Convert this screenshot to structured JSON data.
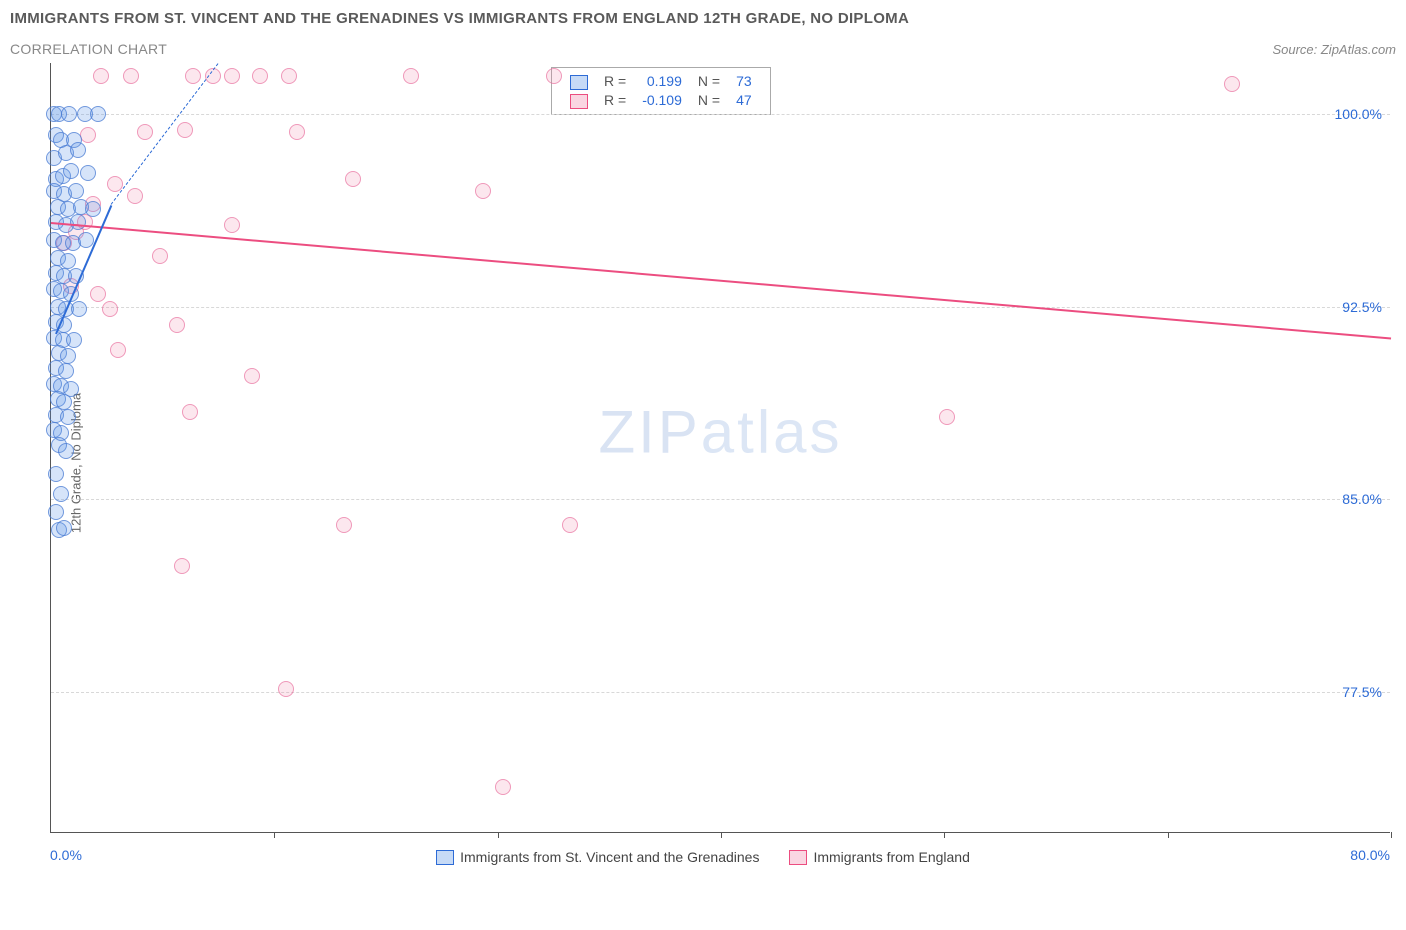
{
  "title": "IMMIGRANTS FROM ST. VINCENT AND THE GRENADINES VS IMMIGRANTS FROM ENGLAND 12TH GRADE, NO DIPLOMA",
  "subtitle": "CORRELATION CHART",
  "source": "Source: ZipAtlas.com",
  "watermark_a": "ZIP",
  "watermark_b": "atlas",
  "chart": {
    "type": "scatter",
    "xlim": [
      0,
      80
    ],
    "ylim": [
      72,
      102
    ],
    "x_left_label": "0.0%",
    "x_right_label": "80.0%",
    "x_ticks": [
      13.33,
      26.67,
      40,
      53.33,
      66.67,
      80
    ],
    "y_ticks": [
      {
        "v": 100,
        "label": "100.0%"
      },
      {
        "v": 92.5,
        "label": "92.5%"
      },
      {
        "v": 85,
        "label": "85.0%"
      },
      {
        "v": 77.5,
        "label": "77.5%"
      }
    ],
    "y_axis_label": "12th Grade, No Diploma",
    "background_color": "#ffffff",
    "grid_color": "#d8d8d8"
  },
  "series": {
    "blue": {
      "label": "Immigrants from St. Vincent and the Grenadines",
      "color_fill": "rgba(93,148,230,0.25)",
      "color_stroke": "#4678d2",
      "R": "0.199",
      "N": "73",
      "trend": {
        "x1": 0.3,
        "y1": 91.5,
        "x2": 3.6,
        "y2": 96.5
      },
      "trend_ext": {
        "x1": 3.6,
        "y1": 96.5,
        "x2": 10,
        "y2": 102
      },
      "points": [
        [
          0.2,
          100
        ],
        [
          0.5,
          100
        ],
        [
          1.1,
          100
        ],
        [
          2.0,
          100
        ],
        [
          2.8,
          100
        ],
        [
          0.3,
          99.2
        ],
        [
          0.6,
          99.0
        ],
        [
          1.4,
          99.0
        ],
        [
          0.2,
          98.3
        ],
        [
          0.9,
          98.5
        ],
        [
          1.6,
          98.6
        ],
        [
          0.3,
          97.5
        ],
        [
          0.7,
          97.6
        ],
        [
          1.2,
          97.8
        ],
        [
          2.2,
          97.7
        ],
        [
          0.2,
          97.0
        ],
        [
          0.8,
          96.9
        ],
        [
          1.5,
          97.0
        ],
        [
          0.4,
          96.4
        ],
        [
          1.0,
          96.3
        ],
        [
          1.8,
          96.4
        ],
        [
          2.5,
          96.3
        ],
        [
          0.3,
          95.8
        ],
        [
          0.9,
          95.7
        ],
        [
          1.6,
          95.8
        ],
        [
          0.2,
          95.1
        ],
        [
          0.7,
          95.0
        ],
        [
          1.3,
          95.0
        ],
        [
          2.1,
          95.1
        ],
        [
          0.4,
          94.4
        ],
        [
          1.0,
          94.3
        ],
        [
          0.3,
          93.8
        ],
        [
          0.8,
          93.7
        ],
        [
          1.5,
          93.7
        ],
        [
          0.2,
          93.2
        ],
        [
          0.6,
          93.1
        ],
        [
          1.2,
          93.0
        ],
        [
          0.4,
          92.5
        ],
        [
          0.9,
          92.4
        ],
        [
          1.7,
          92.4
        ],
        [
          0.3,
          91.9
        ],
        [
          0.8,
          91.8
        ],
        [
          0.2,
          91.3
        ],
        [
          0.7,
          91.2
        ],
        [
          1.4,
          91.2
        ],
        [
          0.5,
          90.7
        ],
        [
          1.0,
          90.6
        ],
        [
          0.3,
          90.1
        ],
        [
          0.9,
          90.0
        ],
        [
          0.2,
          89.5
        ],
        [
          0.6,
          89.4
        ],
        [
          1.2,
          89.3
        ],
        [
          0.4,
          88.9
        ],
        [
          0.8,
          88.8
        ],
        [
          0.3,
          88.3
        ],
        [
          1.0,
          88.2
        ],
        [
          0.2,
          87.7
        ],
        [
          0.6,
          87.6
        ],
        [
          0.5,
          87.1
        ],
        [
          0.9,
          86.9
        ],
        [
          0.3,
          86.0
        ],
        [
          0.6,
          85.2
        ],
        [
          0.3,
          84.5
        ],
        [
          0.5,
          83.8
        ],
        [
          0.8,
          83.9
        ]
      ]
    },
    "pink": {
      "label": "Immigrants from England",
      "color_fill": "rgba(240,120,160,0.18)",
      "color_stroke": "#e6649a",
      "R": "-0.109",
      "N": "47",
      "trend": {
        "x1": 0,
        "y1": 95.8,
        "x2": 80,
        "y2": 91.3
      },
      "points": [
        [
          3.0,
          101.5
        ],
        [
          4.8,
          101.5
        ],
        [
          8.5,
          101.5
        ],
        [
          9.7,
          101.5
        ],
        [
          10.8,
          101.5
        ],
        [
          12.5,
          101.5
        ],
        [
          14.2,
          101.5
        ],
        [
          21.5,
          101.5
        ],
        [
          30.0,
          101.5
        ],
        [
          70.5,
          101.2
        ],
        [
          2.2,
          99.2
        ],
        [
          5.6,
          99.3
        ],
        [
          8.0,
          99.4
        ],
        [
          14.7,
          99.3
        ],
        [
          3.8,
          97.3
        ],
        [
          5.0,
          96.8
        ],
        [
          18.0,
          97.5
        ],
        [
          2.5,
          96.5
        ],
        [
          2.0,
          95.8
        ],
        [
          0.8,
          95.0
        ],
        [
          1.5,
          95.4
        ],
        [
          25.8,
          97.0
        ],
        [
          6.5,
          94.5
        ],
        [
          10.8,
          95.7
        ],
        [
          1.2,
          93.3
        ],
        [
          2.8,
          93.0
        ],
        [
          3.5,
          92.4
        ],
        [
          7.5,
          91.8
        ],
        [
          4.0,
          90.8
        ],
        [
          12.0,
          89.8
        ],
        [
          8.3,
          88.4
        ],
        [
          53.5,
          88.2
        ],
        [
          17.5,
          84.0
        ],
        [
          31.0,
          84.0
        ],
        [
          7.8,
          82.4
        ],
        [
          14.0,
          77.6
        ],
        [
          27.0,
          73.8
        ]
      ]
    }
  },
  "legend_box": {
    "r_label": "R =",
    "n_label": "N ="
  }
}
